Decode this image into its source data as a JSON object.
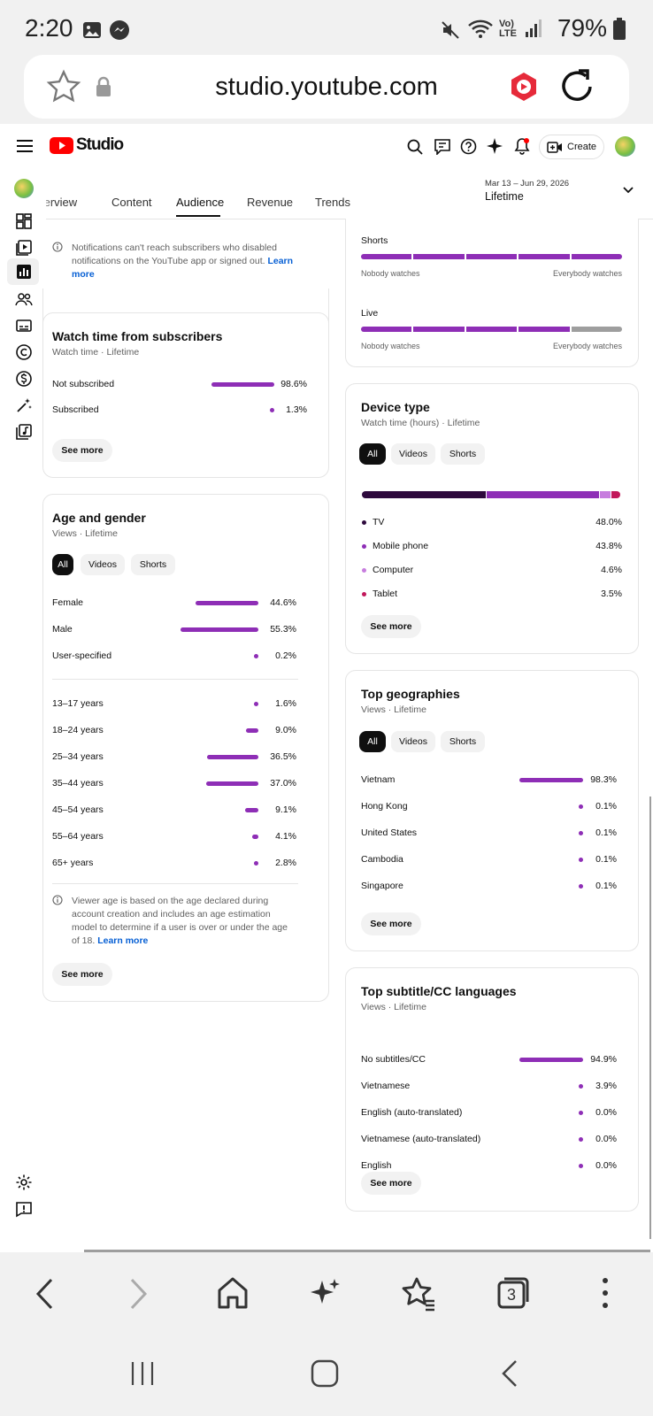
{
  "status_bar": {
    "time": "2:20",
    "battery": "79%",
    "network": "Vo) LTE"
  },
  "browser": {
    "url": "studio.youtube.com",
    "tabs_count": "3"
  },
  "header": {
    "logo_text": "Studio",
    "create_label": "Create"
  },
  "tabs": [
    {
      "label": "Overview"
    },
    {
      "label": "Content"
    },
    {
      "label": "Audience"
    },
    {
      "label": "Revenue"
    },
    {
      "label": "Trends"
    }
  ],
  "date_range": {
    "range": "Mar 13 – Jun 29, 2026",
    "label": "Lifetime"
  },
  "notification_note": {
    "text": "Notifications can't reach subscribers who disabled notifications on the YouTube app or signed out.",
    "link": "Learn more"
  },
  "watch_time_subscribers": {
    "title": "Watch time from subscribers",
    "subtitle": "Watch time · Lifetime",
    "rows": [
      {
        "label": "Not subscribed",
        "value": "98.6%",
        "pct": 98.6
      },
      {
        "label": "Subscribed",
        "value": "1.3%",
        "pct": 1.3
      }
    ],
    "see_more": "See more"
  },
  "age_gender": {
    "title": "Age and gender",
    "subtitle": "Views · Lifetime",
    "chips": [
      "All",
      "Videos",
      "Shorts"
    ],
    "gender": [
      {
        "label": "Female",
        "value": "44.6%",
        "pct": 44.6
      },
      {
        "label": "Male",
        "value": "55.3%",
        "pct": 55.3
      },
      {
        "label": "User-specified",
        "value": "0.2%",
        "pct": 0.2
      }
    ],
    "ages": [
      {
        "label": "13–17 years",
        "value": "1.6%",
        "pct": 1.6
      },
      {
        "label": "18–24 years",
        "value": "9.0%",
        "pct": 9.0
      },
      {
        "label": "25–34 years",
        "value": "36.5%",
        "pct": 36.5
      },
      {
        "label": "35–44 years",
        "value": "37.0%",
        "pct": 37.0
      },
      {
        "label": "45–54 years",
        "value": "9.1%",
        "pct": 9.1
      },
      {
        "label": "55–64 years",
        "value": "4.1%",
        "pct": 4.1
      },
      {
        "label": "65+ years",
        "value": "2.8%",
        "pct": 2.8
      }
    ],
    "note": "Viewer age is based on the age declared during account creation and includes an age estimation model to determine if a user is over or under the age of 18.",
    "note_link": "Learn more",
    "see_more": "See more"
  },
  "reach_card": {
    "shorts_label": "Shorts",
    "live_label": "Live",
    "nobody": "Nobody watches",
    "everybody": "Everybody watches",
    "shorts_level": 1.0,
    "live_level": 0.8
  },
  "device_type": {
    "title": "Device type",
    "subtitle": "Watch time (hours) · Lifetime",
    "chips": [
      "All",
      "Videos",
      "Shorts"
    ],
    "rows": [
      {
        "label": "TV",
        "value": "48.0%",
        "pct": 48.0,
        "color": "#2e0a3d"
      },
      {
        "label": "Mobile phone",
        "value": "43.8%",
        "pct": 43.8,
        "color": "#8e2eb6"
      },
      {
        "label": "Computer",
        "value": "4.6%",
        "pct": 4.6,
        "color": "#c77dde"
      },
      {
        "label": "Tablet",
        "value": "3.5%",
        "pct": 3.5,
        "color": "#c2185b"
      }
    ],
    "see_more": "See more"
  },
  "top_geographies": {
    "title": "Top geographies",
    "subtitle": "Views · Lifetime",
    "chips": [
      "All",
      "Videos",
      "Shorts"
    ],
    "rows": [
      {
        "label": "Vietnam",
        "value": "98.3%",
        "pct": 98.3
      },
      {
        "label": "Hong Kong",
        "value": "0.1%",
        "pct": 0.1
      },
      {
        "label": "United States",
        "value": "0.1%",
        "pct": 0.1
      },
      {
        "label": "Cambodia",
        "value": "0.1%",
        "pct": 0.1
      },
      {
        "label": "Singapore",
        "value": "0.1%",
        "pct": 0.1
      }
    ],
    "see_more": "See more"
  },
  "top_subtitles": {
    "title": "Top subtitle/CC languages",
    "subtitle": "Views · Lifetime",
    "rows": [
      {
        "label": "No subtitles/CC",
        "value": "94.9%",
        "pct": 94.9
      },
      {
        "label": "Vietnamese",
        "value": "3.9%",
        "pct": 3.9
      },
      {
        "label": "English (auto-translated)",
        "value": "0.0%",
        "pct": 0.0
      },
      {
        "label": "Vietnamese (auto-translated)",
        "value": "0.0%",
        "pct": 0.0
      },
      {
        "label": "English",
        "value": "0.0%",
        "pct": 0.0
      }
    ],
    "see_more": "See more"
  },
  "colors": {
    "accent": "#8e2eb6",
    "brand_red": "#ff0000",
    "link": "#065fd4",
    "grey_bar": "#9e9e9e"
  }
}
